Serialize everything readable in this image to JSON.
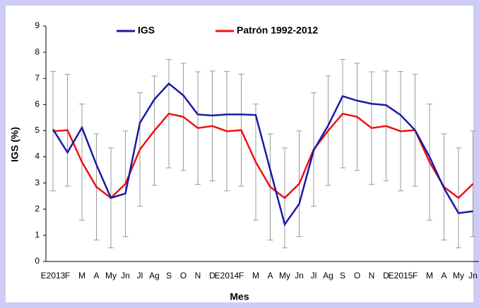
{
  "chart_data": {
    "type": "line",
    "x_label": "Mes",
    "y_label": "IGS (%)",
    "categories": [
      "E2013",
      "F",
      "M",
      "A",
      "My",
      "Jn",
      "Jl",
      "Ag",
      "S",
      "O",
      "N",
      "D",
      "E2014",
      "F",
      "M",
      "A",
      "My",
      "Jn",
      "Jl",
      "Ag",
      "S",
      "O",
      "N",
      "D",
      "E2015",
      "F",
      "M",
      "A",
      "My",
      "Jn"
    ],
    "series": [
      {
        "name": "IGS",
        "color": "#1a1aa6",
        "values": [
          5.05,
          4.17,
          5.12,
          3.7,
          2.43,
          2.6,
          5.3,
          6.2,
          6.8,
          6.35,
          5.62,
          5.58,
          5.62,
          5.62,
          5.6,
          3.5,
          1.42,
          2.2,
          4.25,
          5.2,
          6.32,
          6.15,
          6.03,
          5.98,
          5.6,
          5.02,
          4.0,
          2.8,
          1.85,
          1.92
        ]
      },
      {
        "name": "Patrón  1992-2012",
        "color": "#ee1111",
        "values": [
          4.98,
          5.02,
          3.8,
          2.85,
          2.43,
          2.97,
          4.28,
          5.0,
          5.65,
          5.53,
          5.1,
          5.18,
          4.98,
          5.02,
          3.8,
          2.85,
          2.43,
          2.97,
          4.28,
          5.0,
          5.65,
          5.53,
          5.1,
          5.18,
          4.98,
          5.02,
          3.8,
          2.85,
          2.43,
          2.97
        ],
        "errors": [
          2.28,
          2.14,
          2.22,
          2.03,
          1.91,
          2.02,
          2.17,
          2.09,
          2.07,
          2.05,
          2.15,
          2.1,
          2.28,
          2.14,
          2.22,
          2.03,
          1.91,
          2.02,
          2.17,
          2.09,
          2.07,
          2.05,
          2.15,
          2.1,
          2.28,
          2.14,
          2.22,
          2.03,
          1.91,
          2.02
        ]
      }
    ],
    "ylim": [
      0,
      9
    ],
    "yticks": [
      0,
      1,
      2,
      3,
      4,
      5,
      6,
      7,
      8,
      9
    ],
    "grid": false
  }
}
